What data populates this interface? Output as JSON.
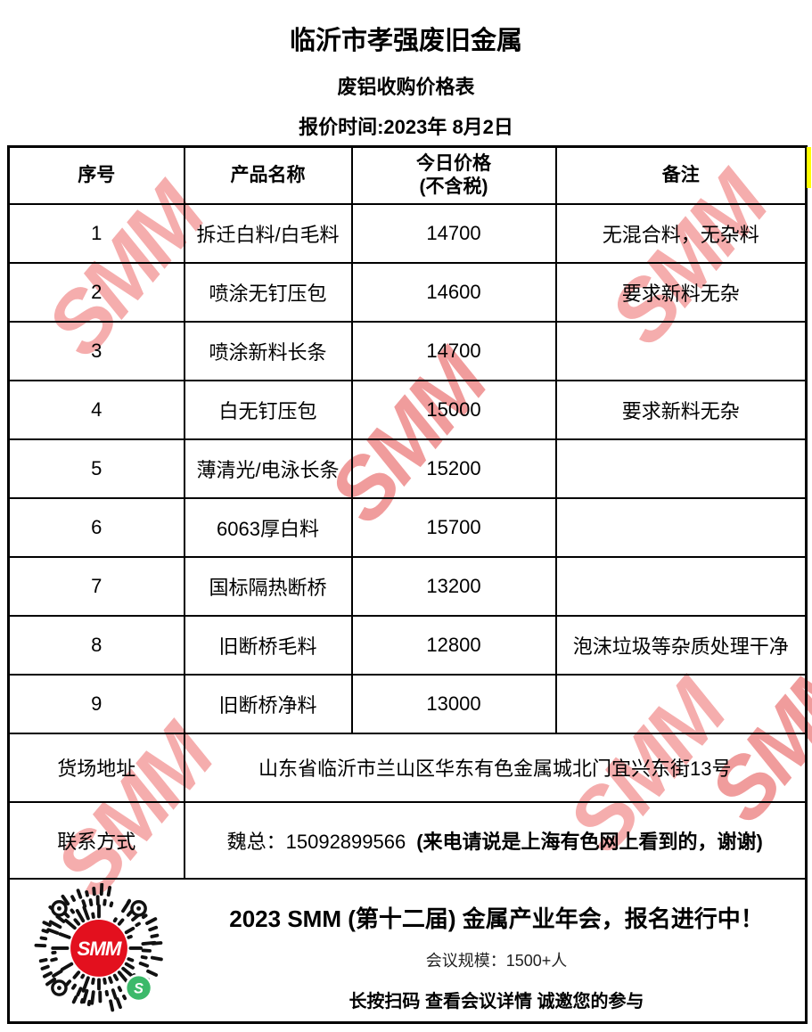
{
  "watermark": {
    "text": "SMM",
    "color": "#f5adad"
  },
  "header": {
    "company": "临沂市孝强废旧金属",
    "subtitle": "废铝收购价格表",
    "quote_date": "报价时间:2023年 8月2日"
  },
  "table": {
    "col_seq": "序号",
    "col_product": "产品名称",
    "col_price_line1": "今日价格",
    "col_price_line2": "(不含税)",
    "col_remark": "备注",
    "rows": [
      {
        "seq": "1",
        "product": "拆迁白料/白毛料",
        "price": "14700",
        "remark": "无混合料，无杂料"
      },
      {
        "seq": "2",
        "product": "喷涂无钉压包",
        "price": "14600",
        "remark": "要求新料无杂"
      },
      {
        "seq": "3",
        "product": "喷涂新料长条",
        "price": "14700",
        "remark": ""
      },
      {
        "seq": "4",
        "product": "白无钉压包",
        "price": "15000",
        "remark": "要求新料无杂"
      },
      {
        "seq": "5",
        "product": "薄清光/电泳长条",
        "price": "15200",
        "remark": ""
      },
      {
        "seq": "6",
        "product": "6063厚白料",
        "price": "15700",
        "remark": ""
      },
      {
        "seq": "7",
        "product": "国标隔热断桥",
        "price": "13200",
        "remark": ""
      },
      {
        "seq": "8",
        "product": "旧断桥毛料",
        "price": "12800",
        "remark": "泡沫垃圾等杂质处理干净"
      },
      {
        "seq": "9",
        "product": "旧断桥净料",
        "price": "13000",
        "remark": ""
      }
    ]
  },
  "address": {
    "label": "货场地址",
    "value": "山东省临沂市兰山区华东有色金属城北门宜兴东街13号"
  },
  "contact": {
    "label": "联系方式",
    "phone": "魏总：15092899566",
    "note": "(来电请说是上海有色网上看到的，谢谢)"
  },
  "footer": {
    "title": "2023 SMM (第十二届) 金属产业年会，报名进行中！",
    "scale": "会议规模：1500+人",
    "cta": "长按扫码 查看会议详情  诚邀您的参与",
    "qr_logo": "SMM",
    "badge_letter": "S"
  },
  "colors": {
    "watermark_pink": "#f5adad",
    "logo_red": "#e3101e",
    "badge_green": "#3cb96a",
    "highlight_yellow": "#ffff00"
  }
}
